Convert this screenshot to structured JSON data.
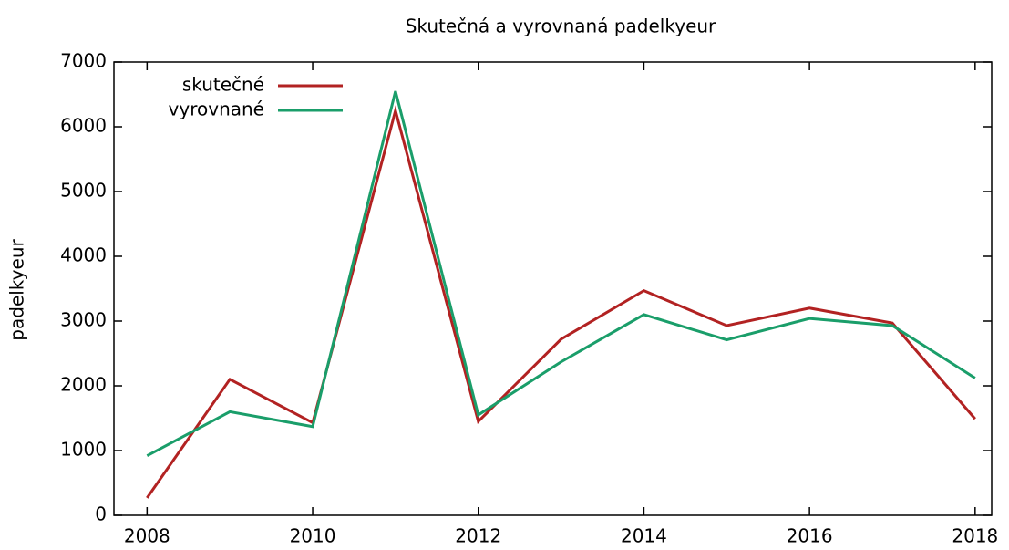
{
  "chart_data": {
    "type": "line",
    "title": "Skutečná a vyrovnaná padelkyeur",
    "y_label": "padelkyeur",
    "x": [
      2008,
      2009,
      2010,
      2011,
      2012,
      2013,
      2014,
      2015,
      2016,
      2017,
      2018
    ],
    "series": [
      {
        "name": "skutečné",
        "color": "#b22222",
        "values": [
          270,
          2100,
          1430,
          6250,
          1450,
          2720,
          3470,
          2930,
          3200,
          2970,
          1490
        ]
      },
      {
        "name": "vyrovnané",
        "color": "#1a9e6a",
        "values": [
          920,
          1600,
          1370,
          6550,
          1550,
          2370,
          3100,
          2710,
          3040,
          2930,
          2120
        ]
      }
    ],
    "xlim": [
      2007.6,
      2018.2
    ],
    "xticks": [
      2008,
      2010,
      2012,
      2014,
      2016,
      2018
    ],
    "ylim": [
      0,
      7000
    ],
    "yticks": [
      0,
      1000,
      2000,
      3000,
      4000,
      5000,
      6000,
      7000
    ],
    "legend": "top-left"
  }
}
